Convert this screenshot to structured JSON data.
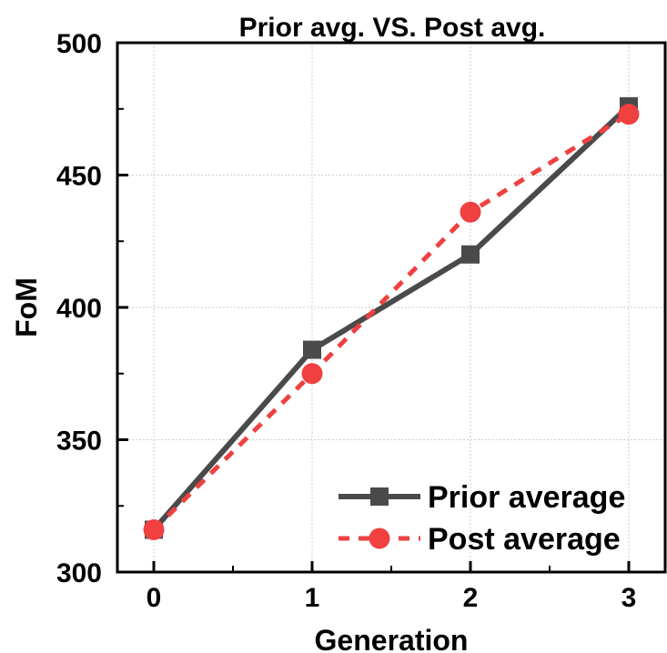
{
  "chart_data": {
    "type": "line",
    "title": "Prior avg. VS. Post avg.",
    "xlabel": "Generation",
    "ylabel": "FoM",
    "x": [
      0,
      1,
      2,
      3
    ],
    "xticks": [
      "0",
      "1",
      "2",
      "3"
    ],
    "xlim": [
      -0.23,
      3.23
    ],
    "yticks": [
      "300",
      "350",
      "400",
      "450",
      "500"
    ],
    "ylim": [
      300,
      500
    ],
    "grid": true,
    "legend_position": "bottom-right",
    "series": [
      {
        "name": "Prior average",
        "values": [
          316,
          384,
          420,
          476
        ],
        "color": "#4a4a4a",
        "marker": "square",
        "line": "solid"
      },
      {
        "name": "Post average",
        "values": [
          316,
          375,
          436,
          473
        ],
        "color": "#f04040",
        "marker": "circle",
        "line": "dashed"
      }
    ]
  }
}
